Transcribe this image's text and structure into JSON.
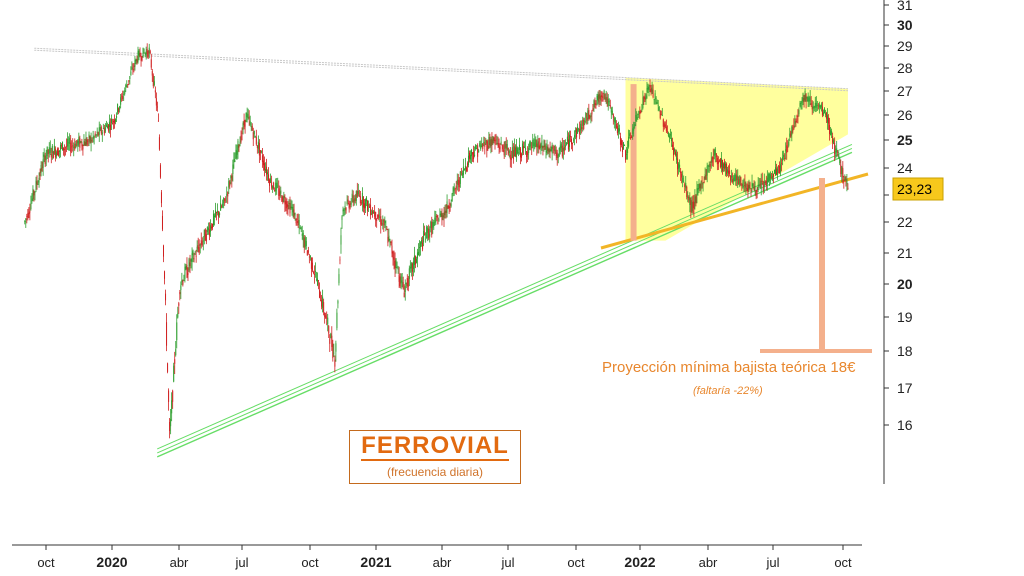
{
  "colors": {
    "up_candle": "#2e9e2e",
    "down_candle": "#d02020",
    "triangle_fill": "#ffff99",
    "support_channel": "#66dd66",
    "resistance": "#c8c8c8",
    "triangle_base_line": "#f2b526",
    "projection": "#f4b08c",
    "price_label_bg": "#f7c81c"
  },
  "title": {
    "name": "FERROVIAL",
    "subtitle": "(frecuencia diaria)"
  },
  "annotations": {
    "projection_text": "Proyección mínima bajista teórica 18€",
    "projection_note": "(faltaría -22%)"
  },
  "last_price_label": "23,23",
  "chart_data": {
    "type": "line",
    "series": [
      {
        "style": "ohlc-candles",
        "x": [
          "2019-09-02",
          "2019-10-01",
          "2019-11-01",
          "2019-12-02",
          "2020-01-02",
          "2020-02-03",
          "2020-02-19",
          "2020-03-02",
          "2020-03-18",
          "2020-04-01",
          "2020-05-04",
          "2020-06-01",
          "2020-07-01",
          "2020-08-03",
          "2020-09-01",
          "2020-10-01",
          "2020-10-30",
          "2020-11-09",
          "2020-12-01",
          "2021-01-04",
          "2021-02-01",
          "2021-03-01",
          "2021-04-01",
          "2021-05-03",
          "2021-06-01",
          "2021-07-01",
          "2021-08-02",
          "2021-09-01",
          "2021-10-01",
          "2021-11-01",
          "2021-12-01",
          "2021-12-20",
          "2022-01-03",
          "2022-02-01",
          "2022-03-01",
          "2022-04-01",
          "2022-05-02",
          "2022-06-01",
          "2022-07-01",
          "2022-08-01",
          "2022-09-01",
          "2022-09-15",
          "2022-10-01"
        ],
        "y": [
          22.0,
          24.5,
          24.8,
          25.0,
          25.8,
          28.5,
          28.8,
          26.0,
          15.6,
          20.0,
          21.5,
          22.7,
          26.0,
          23.5,
          22.5,
          20.5,
          17.8,
          22.5,
          23.0,
          22.0,
          19.8,
          21.5,
          22.5,
          24.5,
          25.0,
          24.5,
          24.8,
          24.5,
          25.5,
          27.0,
          24.5,
          26.2,
          27.2,
          25.0,
          22.5,
          24.5,
          23.5,
          23.2,
          24.0,
          26.8,
          26.0,
          24.5,
          23.23
        ]
      }
    ],
    "ylim": [
      15,
      31
    ],
    "yticks": [
      "16",
      "17",
      "18",
      "19",
      "20",
      "21",
      "22",
      "23",
      "24",
      "25",
      "26",
      "27",
      "28",
      "29",
      "30",
      "31"
    ],
    "xticks": [
      "oct",
      "2020",
      "abr",
      "jul",
      "oct",
      "2021",
      "abr",
      "jul",
      "oct",
      "2022",
      "abr",
      "jul",
      "oct"
    ],
    "trendlines": [
      {
        "name": "resistance",
        "from": [
          "2019-09-15",
          28.9
        ],
        "to": [
          "2022-10-01",
          27.1
        ]
      },
      {
        "name": "support",
        "from": [
          "2020-03-01",
          15.3
        ],
        "to": [
          "2022-10-01",
          24.7
        ]
      },
      {
        "name": "triangle-base",
        "from": [
          "2021-12-01",
          21.1
        ],
        "to": [
          "2022-10-05",
          23.6
        ]
      }
    ],
    "projection": {
      "triangle_height_from": 27.3,
      "triangle_height_to": 21.4,
      "target": 18
    },
    "last_value": 23.23,
    "grid": false,
    "legend": "none"
  }
}
